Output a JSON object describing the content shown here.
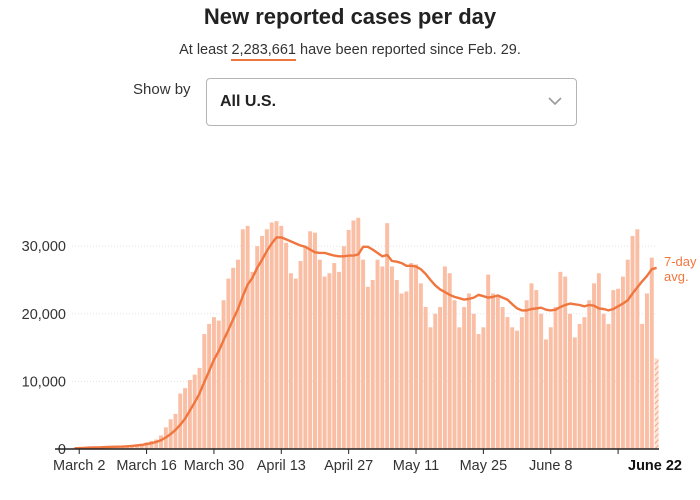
{
  "header": {
    "title": "New reported cases per day",
    "subtitle_prefix": "At least ",
    "subtitle_number": "2,283,661",
    "subtitle_suffix": " have been reported since Feb. 29."
  },
  "controls": {
    "show_by_label": "Show by",
    "selected": "All U.S.",
    "chevron_icon": "chevron-down-icon"
  },
  "colors": {
    "bar": "#f9bea4",
    "bar_partial": "#f4a584",
    "avg_line": "#f0763f",
    "axis_text": "#333333",
    "grid": "#e3e3e3"
  },
  "chart_data": {
    "type": "bar",
    "start_date": "March 1",
    "x_tick_labels": [
      "March 2",
      "March 16",
      "March 30",
      "April 13",
      "April 27",
      "May 11",
      "May 25",
      "June 8",
      "June 22"
    ],
    "x_tick_index": [
      1,
      15,
      29,
      43,
      57,
      71,
      85,
      99,
      113
    ],
    "y_tick_labels": [
      "0",
      "10,000",
      "20,000",
      "30,000"
    ],
    "y_ticks": [
      0,
      10000,
      20000,
      30000
    ],
    "ylim": [
      0,
      35000
    ],
    "grid": true,
    "line_label": [
      "7-day",
      "avg."
    ],
    "partial_last_day": true,
    "series": [
      {
        "type": "bar",
        "values": [
          100,
          200,
          200,
          300,
          250,
          300,
          300,
          400,
          350,
          300,
          400,
          500,
          600,
          700,
          800,
          1000,
          1200,
          1400,
          2000,
          3200,
          4400,
          5200,
          8200,
          9000,
          10200,
          11000,
          12000,
          17000,
          18500,
          19500,
          19000,
          22000,
          25200,
          26800,
          28000,
          32500,
          33000,
          26200,
          30000,
          31500,
          32500,
          33500,
          33700,
          33000,
          30500,
          26000,
          25200,
          27800,
          30000,
          32200,
          32000,
          28000,
          25500,
          26000,
          27500,
          26200,
          30000,
          32400,
          33800,
          34200,
          28000,
          24000,
          25000,
          28000,
          27000,
          33400,
          27000,
          25000,
          23000,
          23300,
          27500,
          27300,
          24500,
          21000,
          18000,
          20000,
          21000,
          27000,
          26000,
          22000,
          18000,
          21000,
          23000,
          20000,
          17000,
          18000,
          25800,
          23000,
          22500,
          21000,
          19500,
          18000,
          17500,
          19500,
          22000,
          24500,
          23500,
          20000,
          16200,
          18000,
          21000,
          26200,
          25500,
          20000,
          16500,
          18500,
          19500,
          22000,
          24500,
          26000,
          20000,
          18500,
          23500,
          23700,
          25500,
          28000,
          31500,
          32500,
          18500,
          23000,
          28300,
          13400
        ]
      },
      {
        "type": "line",
        "name": "7-day avg.",
        "values": [
          100,
          140,
          170,
          200,
          220,
          240,
          260,
          290,
          320,
          340,
          360,
          400,
          460,
          530,
          610,
          720,
          860,
          1030,
          1300,
          1700,
          2200,
          2800,
          3600,
          4500,
          5700,
          6900,
          8200,
          9900,
          11500,
          13200,
          14500,
          16100,
          17600,
          19200,
          20700,
          22600,
          24300,
          25300,
          26800,
          28000,
          29300,
          30400,
          31300,
          31300,
          31000,
          30700,
          30400,
          30100,
          29900,
          29500,
          29100,
          29000,
          29000,
          28800,
          28600,
          28500,
          28500,
          28600,
          28600,
          28800,
          29900,
          29900,
          29500,
          29000,
          28500,
          28700,
          27800,
          27700,
          27500,
          27100,
          27100,
          27000,
          26600,
          25900,
          25000,
          24200,
          23600,
          23200,
          22800,
          22500,
          22300,
          22100,
          22200,
          22400,
          22800,
          22600,
          22400,
          22500,
          22700,
          22400,
          22100,
          21400,
          20800,
          20500,
          20500,
          20700,
          20800,
          20900,
          20600,
          20500,
          20600,
          21000,
          21300,
          21500,
          21400,
          21300,
          21100,
          21300,
          21200,
          20800,
          20700,
          20500,
          20700,
          21100,
          21500,
          22000,
          23000,
          23900,
          24800,
          25600,
          26600,
          26800
        ]
      }
    ]
  }
}
